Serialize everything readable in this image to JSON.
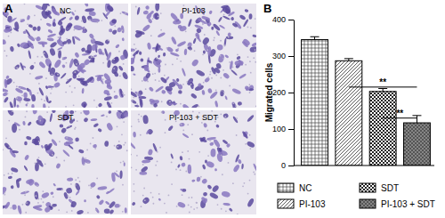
{
  "panel_labels": [
    "A",
    "B"
  ],
  "images": {
    "labels": [
      "NC",
      "PI-103",
      "SDT",
      "PI-103 + SDT"
    ]
  },
  "chart_data": {
    "type": "bar",
    "y_label": "Migrated cells",
    "categories": [
      "NC",
      "PI-103",
      "SDT",
      "PI-103 + SDT"
    ],
    "values": [
      345,
      287,
      203,
      117
    ],
    "errors": [
      8,
      6,
      8,
      20
    ],
    "ylim": [
      0,
      400
    ],
    "yticks": [
      0,
      100,
      200,
      300,
      400
    ],
    "tick_labels": "y",
    "legend": "bottom",
    "annotations": [
      {
        "text": "**",
        "from": "PI-103",
        "to": "PI-103 + SDT",
        "y": 215
      },
      {
        "text": "**",
        "from": "SDT",
        "to": "PI-103 + SDT",
        "y": 130
      }
    ]
  }
}
